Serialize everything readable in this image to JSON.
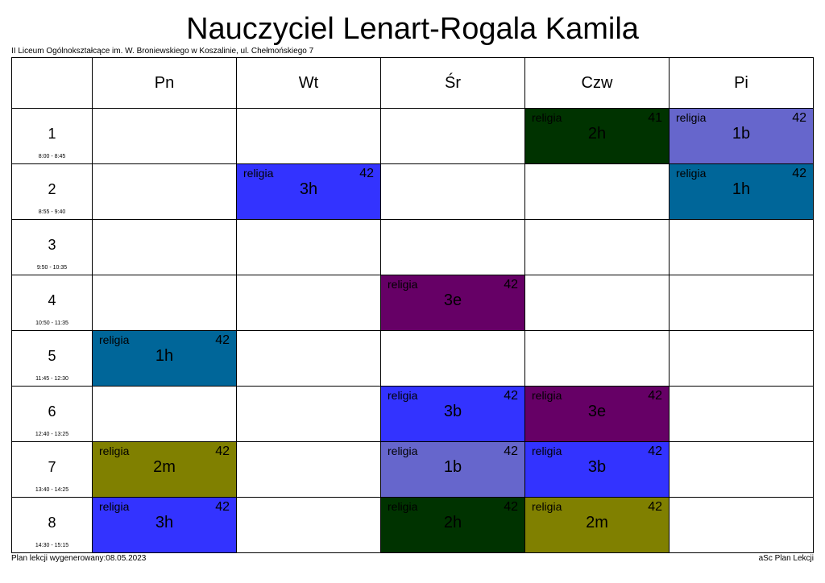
{
  "header": {
    "title": "Nauczyciel Lenart-Rogala Kamila",
    "school": "II Liceum Ogólnokształcące im. W. Broniewskiego w Koszalinie, ul. Chełmońskiego 7"
  },
  "days": [
    "Pn",
    "Wt",
    "Śr",
    "Czw",
    "Pi"
  ],
  "periods": [
    {
      "num": "1",
      "time": "8:00 - 8:45"
    },
    {
      "num": "2",
      "time": "8:55 - 9:40"
    },
    {
      "num": "3",
      "time": "9:50 - 10:35"
    },
    {
      "num": "4",
      "time": "10:50 - 11:35"
    },
    {
      "num": "5",
      "time": "11:45 - 12:30"
    },
    {
      "num": "6",
      "time": "12:40 - 13:25"
    },
    {
      "num": "7",
      "time": "13:40 - 14:25"
    },
    {
      "num": "8",
      "time": "14:30 - 15:15"
    }
  ],
  "lessons": [
    {
      "period": 1,
      "day": 3,
      "subject": "religia",
      "room": "41",
      "class": "2h",
      "color": "#003300"
    },
    {
      "period": 1,
      "day": 4,
      "subject": "religia",
      "room": "42",
      "class": "1b",
      "color": "#6666cc"
    },
    {
      "period": 2,
      "day": 1,
      "subject": "religia",
      "room": "42",
      "class": "3h",
      "color": "#3333ff"
    },
    {
      "period": 2,
      "day": 4,
      "subject": "religia",
      "room": "42",
      "class": "1h",
      "color": "#006699"
    },
    {
      "period": 4,
      "day": 2,
      "subject": "religia",
      "room": "42",
      "class": "3e",
      "color": "#660066"
    },
    {
      "period": 5,
      "day": 0,
      "subject": "religia",
      "room": "42",
      "class": "1h",
      "color": "#006699"
    },
    {
      "period": 6,
      "day": 2,
      "subject": "religia",
      "room": "42",
      "class": "3b",
      "color": "#3333ff"
    },
    {
      "period": 6,
      "day": 3,
      "subject": "religia",
      "room": "42",
      "class": "3e",
      "color": "#660066"
    },
    {
      "period": 7,
      "day": 0,
      "subject": "religia",
      "room": "42",
      "class": "2m",
      "color": "#808000"
    },
    {
      "period": 7,
      "day": 2,
      "subject": "religia",
      "room": "42",
      "class": "1b",
      "color": "#6666cc"
    },
    {
      "period": 7,
      "day": 3,
      "subject": "religia",
      "room": "42",
      "class": "3b",
      "color": "#3333ff"
    },
    {
      "period": 8,
      "day": 0,
      "subject": "religia",
      "room": "42",
      "class": "3h",
      "color": "#3333ff"
    },
    {
      "period": 8,
      "day": 2,
      "subject": "religia",
      "room": "42",
      "class": "2h",
      "color": "#003300"
    },
    {
      "period": 8,
      "day": 3,
      "subject": "religia",
      "room": "42",
      "class": "2m",
      "color": "#808000"
    }
  ],
  "footer": {
    "generated": "Plan lekcji wygenerowany:08.05.2023",
    "software": "aSc Plan Lekcji"
  }
}
